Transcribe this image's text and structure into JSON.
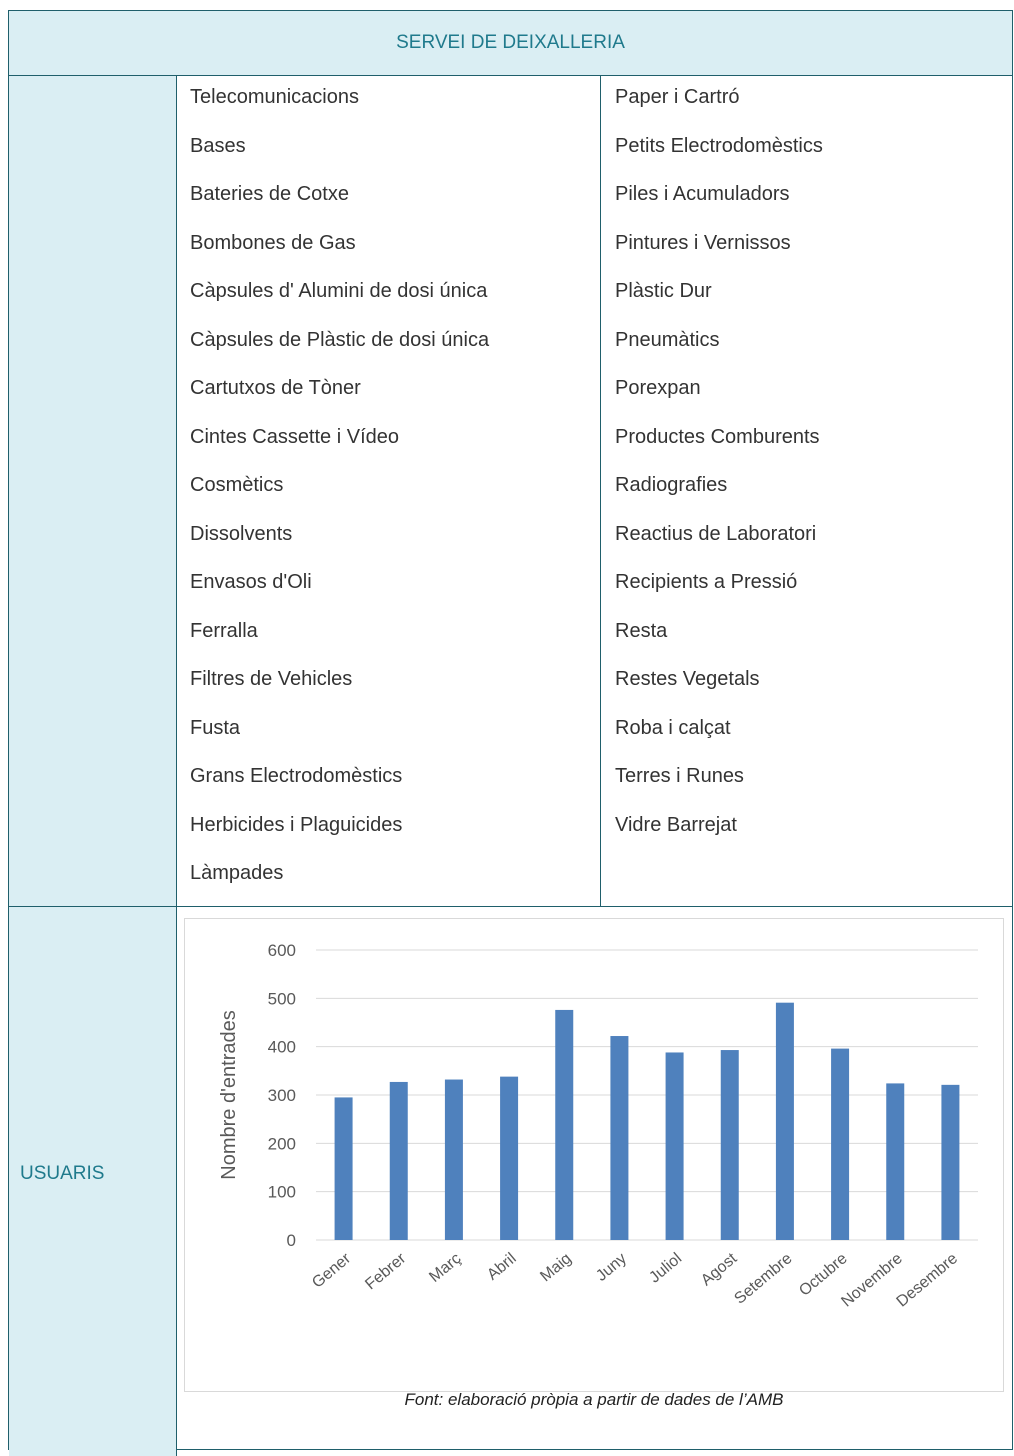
{
  "header": {
    "title": "SERVEI DE DEIXALLERIA"
  },
  "materials": {
    "left": [
      "Telecomunicacions",
      "Bases",
      "Bateries de Cotxe",
      "Bombones de Gas",
      "Càpsules d' Alumini de dosi única",
      "Càpsules de Plàstic de dosi única",
      "Cartutxos de Tòner",
      "Cintes Cassette i Vídeo",
      "Cosmètics",
      "Dissolvents",
      "Envasos d'Oli",
      "Ferralla",
      "Filtres de Vehicles",
      "Fusta",
      "Grans Electrodomèstics",
      "Herbicides i Plaguicides",
      "Làmpades"
    ],
    "right": [
      "Paper i Cartró",
      "Petits Electrodomèstics",
      "Piles i Acumuladors",
      "Pintures i Vernissos",
      "Plàstic Dur",
      "Pneumàtics",
      "Porexpan",
      "Productes Comburents",
      "Radiografies",
      "Reactius de Laboratori",
      "Recipients a Pressió",
      "Resta",
      "Restes Vegetals",
      "Roba i calçat",
      "Terres i Runes",
      "Vidre Barrejat"
    ]
  },
  "users_label": "USUARIS",
  "chart_data": {
    "type": "bar",
    "y_label": "Nombre d'entrades",
    "categories": [
      "Gener",
      "Febrer",
      "Març",
      "Abril",
      "Maig",
      "Juny",
      "Juliol",
      "Agost",
      "Setembre",
      "Octubre",
      "Novembre",
      "Desembre"
    ],
    "values": [
      295,
      327,
      332,
      338,
      476,
      422,
      388,
      393,
      491,
      396,
      324,
      321
    ],
    "color": "#4f81bd",
    "ylim": [
      0,
      600
    ],
    "yticks": [
      0,
      100,
      200,
      300,
      400,
      500,
      600
    ],
    "grid": true
  },
  "source": "Font: elaboració pròpia a partir de dades de l’AMB"
}
